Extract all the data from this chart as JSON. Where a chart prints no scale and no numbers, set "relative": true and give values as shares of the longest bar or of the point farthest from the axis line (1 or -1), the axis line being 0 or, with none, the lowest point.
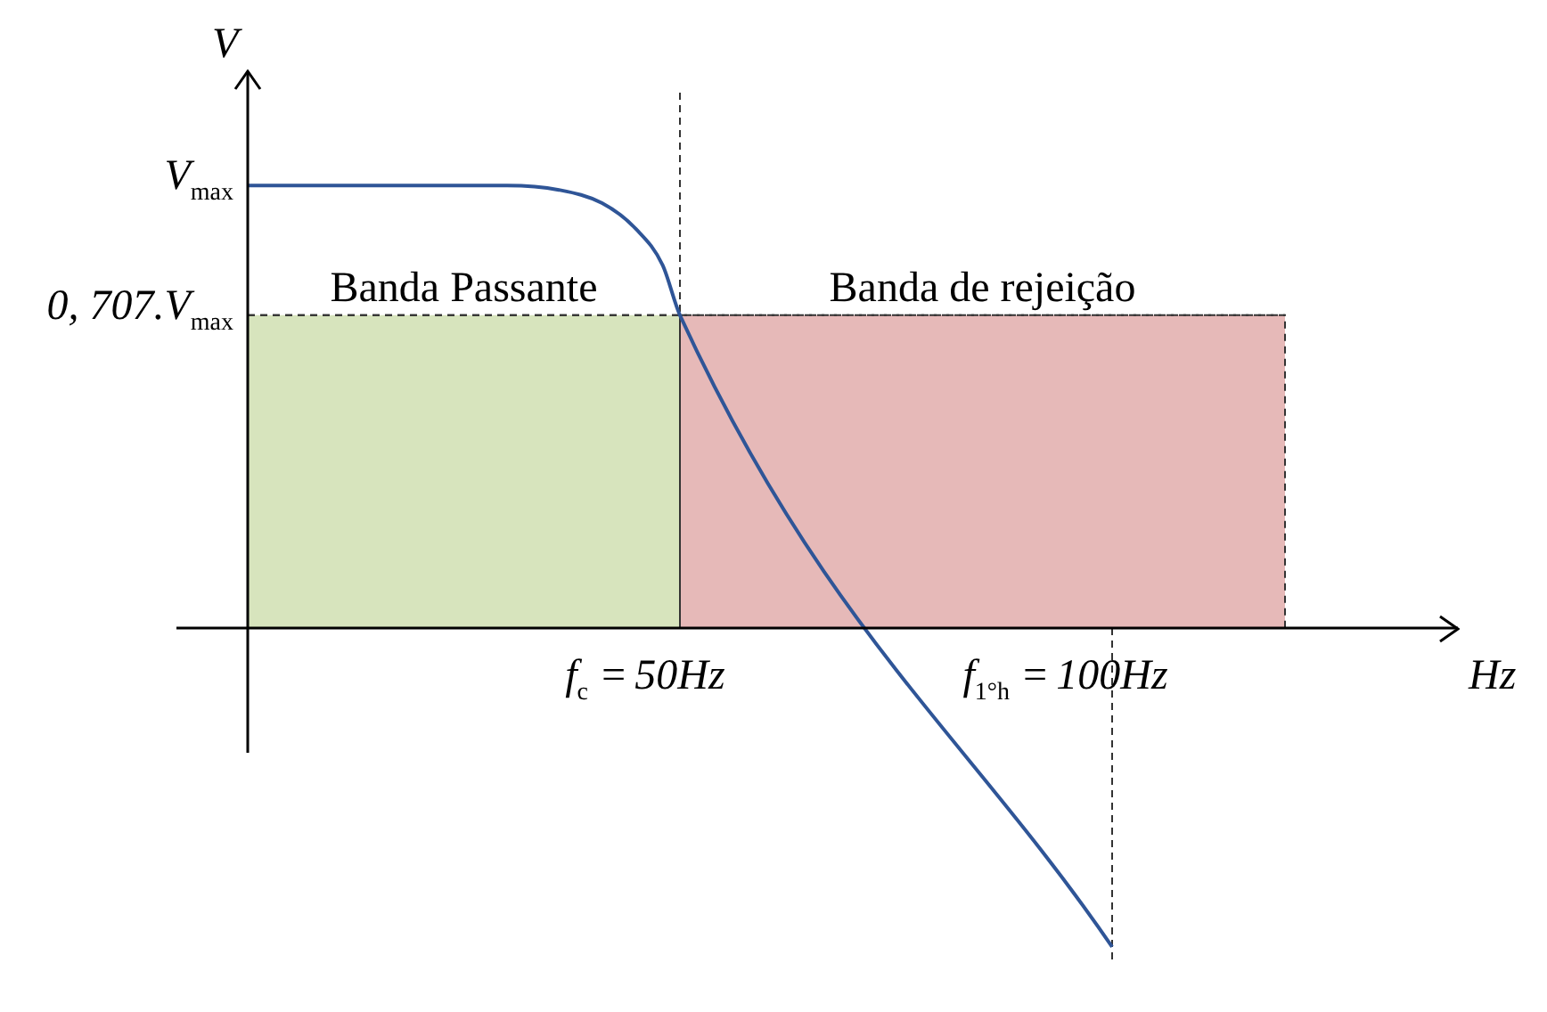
{
  "chart_data": {
    "type": "line",
    "xlabel": "Hz",
    "ylabel": "V",
    "x": [
      0,
      30,
      36,
      41,
      45,
      48,
      50,
      100
    ],
    "series": [
      {
        "color": "#2f5597",
        "values": [
          1,
          1,
          0.99,
          0.96,
          0.9,
          0.82,
          0.707,
          -0.72
        ]
      }
    ],
    "xlim": [
      0,
      140
    ],
    "xticks": [
      {
        "value": 50,
        "label": "50Hz"
      },
      {
        "value": 100,
        "label": "100Hz"
      }
    ],
    "relative": true,
    "annotations": [
      {
        "text": "V$_{max}$",
        "x": 0,
        "y": 1
      },
      {
        "text": "f$_{c}$ =",
        "x": 50,
        "y": 0
      },
      {
        "text": "f$_{1°h}$ =",
        "x": 100,
        "y": 0
      }
    ],
    "ref_lines": [
      {
        "axis": "x",
        "value": 50,
        "line_style": "dashed"
      },
      {
        "axis": "x",
        "value": 100,
        "line_style": "dashed"
      },
      {
        "axis": "y",
        "value": 0.707,
        "line_style": "dashed",
        "label": "0, 707.V$_{max}$"
      }
    ],
    "bands": [
      {
        "axis": "x",
        "from": 0,
        "to": 50,
        "label": "Banda Passante",
        "color": "#d7e4bd"
      },
      {
        "axis": "x",
        "from": 50,
        "to": 120,
        "label": "Banda de rejeição",
        "color": "#e6b9b8"
      }
    ],
    "grid": false,
    "legend": false,
    "marker": "none",
    "line_style": "solid"
  }
}
